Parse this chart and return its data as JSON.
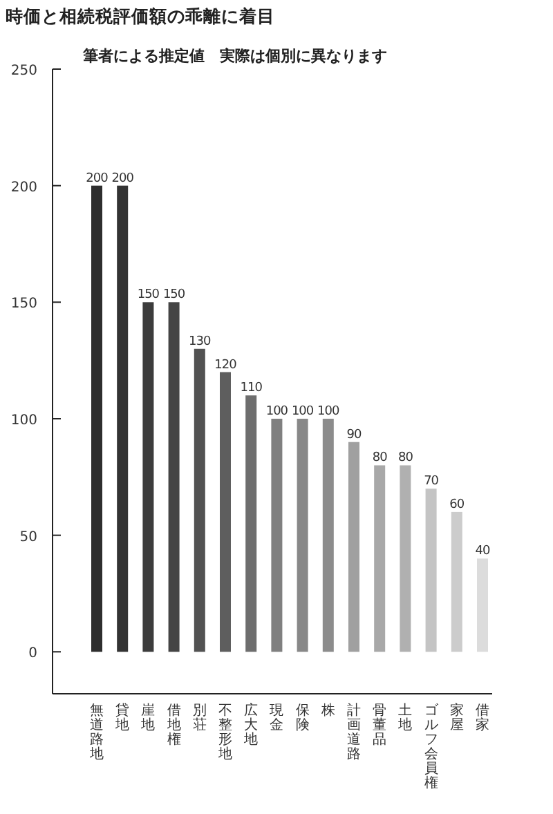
{
  "chart_data": {
    "type": "bar",
    "title": "時価と相続税評価額の乖離に着目",
    "subtitle": "筆者による推定値　実際は個別に異なります",
    "categories": [
      "無道路地",
      "貸地",
      "崖地",
      "借地権",
      "別荘",
      "不整形地",
      "広大地",
      "現金",
      "保険",
      "株",
      "計画道路",
      "骨董品",
      "土地",
      "ゴルフ会員権",
      "家屋",
      "借家"
    ],
    "values": [
      200,
      200,
      150,
      150,
      130,
      120,
      110,
      100,
      100,
      100,
      90,
      80,
      80,
      70,
      60,
      40
    ],
    "colors": [
      "#2e2e2e",
      "#333333",
      "#3c3c3c",
      "#444444",
      "#525252",
      "#5e5e5e",
      "#6e6e6e",
      "#808080",
      "#888888",
      "#8c8c8c",
      "#a0a0a0",
      "#a8a8a8",
      "#b0b0b0",
      "#c4c4c4",
      "#cccccc",
      "#dcdcdc"
    ],
    "ylim": [
      -18,
      250
    ],
    "yticks": [
      0,
      50,
      100,
      150,
      200,
      250
    ],
    "data_labels": true,
    "grid": false
  }
}
